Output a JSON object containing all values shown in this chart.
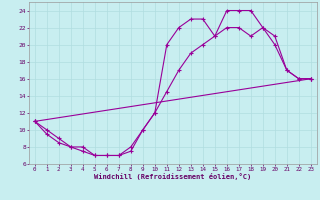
{
  "xlabel": "Windchill (Refroidissement éolien,°C)",
  "bg_color": "#c8eef0",
  "line_color": "#990099",
  "grid_color": "#b0dde0",
  "xlim": [
    -0.5,
    23.5
  ],
  "ylim": [
    6,
    25
  ],
  "xticks": [
    0,
    1,
    2,
    3,
    4,
    5,
    6,
    7,
    8,
    9,
    10,
    11,
    12,
    13,
    14,
    15,
    16,
    17,
    18,
    19,
    20,
    21,
    22,
    23
  ],
  "yticks": [
    6,
    8,
    10,
    12,
    14,
    16,
    18,
    20,
    22,
    24
  ],
  "series": [
    {
      "x": [
        0,
        1,
        2,
        3,
        4,
        5,
        6,
        7,
        8,
        9,
        10,
        11,
        12,
        13,
        14,
        15,
        16,
        17,
        18,
        19,
        20,
        21,
        22,
        23
      ],
      "y": [
        11,
        10,
        9,
        8,
        8,
        7,
        7,
        7,
        7.5,
        10,
        12,
        20,
        22,
        23,
        23,
        21,
        24,
        24,
        24,
        22,
        20,
        17,
        16,
        16
      ]
    },
    {
      "x": [
        0,
        1,
        2,
        3,
        4,
        5,
        6,
        7,
        8,
        9,
        10,
        11,
        12,
        13,
        14,
        15,
        16,
        17,
        18,
        19,
        20,
        21,
        22,
        23
      ],
      "y": [
        11,
        9.5,
        8.5,
        8,
        7.5,
        7,
        7,
        7,
        8,
        10,
        12,
        14.5,
        17,
        19,
        20,
        21,
        22,
        22,
        21,
        22,
        21,
        17,
        16,
        16
      ]
    },
    {
      "x": [
        0,
        23
      ],
      "y": [
        11,
        16
      ]
    }
  ]
}
